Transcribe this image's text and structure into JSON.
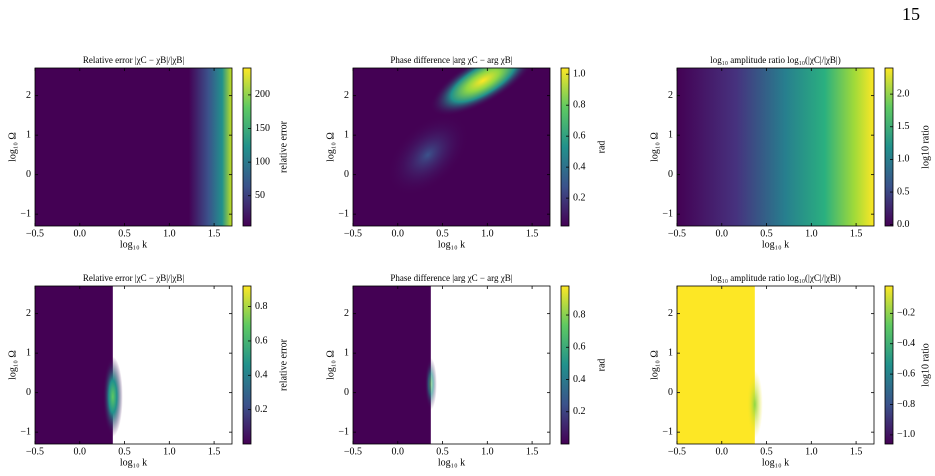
{
  "page_number": "15",
  "chart_data": [
    {
      "type": "heatmap",
      "title": "Relative error |χC − χB|/|χB|",
      "xlabel": "log₁₀ k",
      "ylabel": "log₁₀ Ω",
      "colorbar_label": "relative error",
      "colormap": "viridis",
      "xlim": [
        -0.5,
        1.7
      ],
      "ylim": [
        -1.3,
        2.7
      ],
      "xticks": [
        {
          "value": -0.5,
          "label": "−0.5"
        },
        {
          "value": 0,
          "label": "0.0"
        },
        0.5,
        {
          "value": 1,
          "label": "1.0"
        },
        1.5
      ],
      "yticks": [
        {
          "value": -1,
          "label": "−1"
        },
        0,
        1,
        2
      ],
      "clim": [
        5,
        240
      ],
      "cticks": [
        50,
        100,
        150,
        200
      ]
    },
    {
      "type": "heatmap",
      "title": "Phase difference |arg χC − arg χB|",
      "xlabel": "log₁₀ k",
      "ylabel": "log₁₀ Ω",
      "colorbar_label": "rad",
      "colormap": "viridis",
      "xlim": [
        -0.5,
        1.7
      ],
      "ylim": [
        -1.3,
        2.7
      ],
      "xticks": [
        {
          "value": -0.5,
          "label": "−0.5"
        },
        {
          "value": 0,
          "label": "0.0"
        },
        0.5,
        {
          "value": 1,
          "label": "1.0"
        },
        1.5
      ],
      "yticks": [
        {
          "value": -1,
          "label": "−1"
        },
        0,
        1,
        2
      ],
      "clim": [
        0.02,
        1.04
      ],
      "cticks": [
        0.2,
        0.4,
        0.6,
        0.8,
        {
          "value": 1,
          "label": "1.0"
        }
      ]
    },
    {
      "type": "heatmap",
      "title": "log₁₀ amplitude ratio log₁₀(|χC|/|χB|)",
      "xlabel": "log₁₀ k",
      "ylabel": "log₁₀ Ω",
      "colorbar_label": "log10 ratio",
      "colormap": "viridis",
      "xlim": [
        -0.5,
        1.7
      ],
      "ylim": [
        -1.3,
        2.7
      ],
      "xticks": [
        {
          "value": -0.5,
          "label": "−0.5"
        },
        {
          "value": 0,
          "label": "0.0"
        },
        0.5,
        {
          "value": 1,
          "label": "1.0"
        },
        1.5
      ],
      "yticks": [
        {
          "value": -1,
          "label": "−1"
        },
        0,
        1,
        2
      ],
      "clim": [
        -0.02,
        2.4
      ],
      "cticks": [
        {
          "value": 0,
          "label": "0.0"
        },
        0.5,
        {
          "value": 1,
          "label": "1.0"
        },
        1.5,
        {
          "value": 2,
          "label": "2.0"
        }
      ]
    },
    {
      "type": "heatmap",
      "title": "Relative error |χC − χB|/|χB|",
      "xlabel": "log₁₀ k",
      "ylabel": "log₁₀ Ω",
      "colorbar_label": "relative error",
      "colormap": "viridis",
      "xlim": [
        -0.5,
        1.7
      ],
      "ylim": [
        -1.3,
        2.7
      ],
      "xticks": [
        {
          "value": -0.5,
          "label": "−0.5"
        },
        {
          "value": 0,
          "label": "0.0"
        },
        0.5,
        {
          "value": 1,
          "label": "1.0"
        },
        1.5
      ],
      "yticks": [
        {
          "value": -1,
          "label": "−1"
        },
        0,
        1,
        2
      ],
      "clim": [
        0,
        0.92
      ],
      "cticks": [
        0.2,
        0.4,
        0.6,
        0.8
      ]
    },
    {
      "type": "heatmap",
      "title": "Phase difference |arg χC − arg χB|",
      "xlabel": "log₁₀ k",
      "ylabel": "log₁₀ Ω",
      "colorbar_label": "rad",
      "colormap": "viridis",
      "xlim": [
        -0.5,
        1.7
      ],
      "ylim": [
        -1.3,
        2.7
      ],
      "xticks": [
        {
          "value": -0.5,
          "label": "−0.5"
        },
        {
          "value": 0,
          "label": "0.0"
        },
        0.5,
        {
          "value": 1,
          "label": "1.0"
        },
        1.5
      ],
      "yticks": [
        {
          "value": -1,
          "label": "−1"
        },
        0,
        1,
        2
      ],
      "clim": [
        0,
        0.98
      ],
      "cticks": [
        0.2,
        0.4,
        0.6,
        0.8
      ]
    },
    {
      "type": "heatmap",
      "title": "log₁₀ amplitude ratio log₁₀(|χC|/|χB|)",
      "xlabel": "log₁₀ k",
      "ylabel": "log₁₀ Ω",
      "colorbar_label": "log10 ratio",
      "colormap": "viridis",
      "xlim": [
        -0.5,
        1.7
      ],
      "ylim": [
        -1.3,
        2.7
      ],
      "xticks": [
        {
          "value": -0.5,
          "label": "−0.5"
        },
        {
          "value": 0,
          "label": "0.0"
        },
        0.5,
        {
          "value": 1,
          "label": "1.0"
        },
        1.5
      ],
      "yticks": [
        {
          "value": -1,
          "label": "−1"
        },
        0,
        1,
        2
      ],
      "clim": [
        -1.06,
        -0.02
      ],
      "cticks": [
        {
          "value": -1,
          "label": "−1.0"
        },
        {
          "value": -0.8,
          "label": "−0.8"
        },
        {
          "value": -0.6,
          "label": "−0.6"
        },
        {
          "value": -0.4,
          "label": "−0.4"
        },
        {
          "value": -0.2,
          "label": "−0.2"
        }
      ]
    }
  ]
}
